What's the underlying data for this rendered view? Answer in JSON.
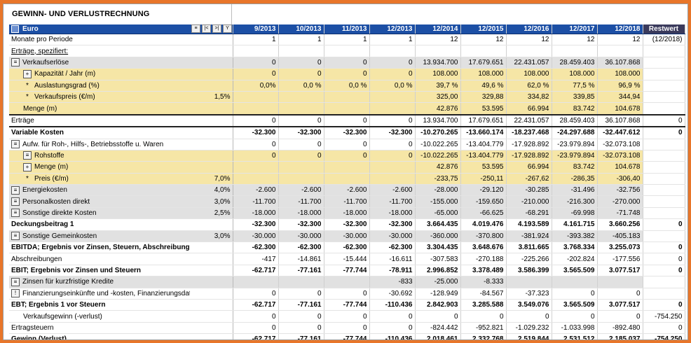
{
  "title": "GEWINN- UND VERLUSTRECHNUNG",
  "header": {
    "currency": "Euro",
    "periods": [
      "9/2013",
      "10/2013",
      "11/2013",
      "12/2013",
      "12/2014",
      "12/2015",
      "12/2016",
      "12/2017",
      "12/2018"
    ],
    "rest": "Restwert"
  },
  "rows": [
    {
      "type": "plain",
      "label": "Monate pro Periode",
      "pct": "",
      "vals": [
        "1",
        "1",
        "1",
        "1",
        "12",
        "12",
        "12",
        "12",
        "12"
      ],
      "rest": "(12/2018)"
    },
    {
      "type": "plain",
      "label": "Erträge, spezifiert:",
      "pct": "",
      "vals": [
        "",
        "",
        "",
        "",
        "",
        "",
        "",
        "",
        ""
      ],
      "rest": "",
      "underline": true
    },
    {
      "type": "gray",
      "icon": "list",
      "label": "Verkaufserlöse",
      "pct": "",
      "vals": [
        "0",
        "0",
        "0",
        "0",
        "13.934.700",
        "17.679.651",
        "22.431.057",
        "28.459.403",
        "36.107.868"
      ],
      "rest": ""
    },
    {
      "type": "yel",
      "icon": "plus",
      "indent": 1,
      "label": "Kapazität / Jahr (m)",
      "pct": "",
      "vals": [
        "0",
        "0",
        "0",
        "0",
        "108.000",
        "108.000",
        "108.000",
        "108.000",
        "108.000"
      ],
      "rest": ""
    },
    {
      "type": "yel",
      "icon": "star",
      "indent": 1,
      "label": "Auslastungsgrad (%)",
      "pct": "",
      "vals": [
        "0,0%",
        "0,0 %",
        "0,0 %",
        "0,0 %",
        "39,7 %",
        "49,6 %",
        "62,0 %",
        "77,5 %",
        "96,9 %"
      ],
      "rest": ""
    },
    {
      "type": "yel",
      "icon": "star",
      "indent": 1,
      "label": "Verkaufspreis (€/m)",
      "pct": "1,5%",
      "vals": [
        "",
        "",
        "",
        "",
        "325,00",
        "329,88",
        "334,82",
        "339,85",
        "344,94"
      ],
      "rest": ""
    },
    {
      "type": "yel",
      "icon": "none",
      "indent": 1,
      "label": "Menge (m)",
      "pct": "",
      "vals": [
        "",
        "",
        "",
        "",
        "42.876",
        "53.595",
        "66.994",
        "83.742",
        "104.678"
      ],
      "rest": ""
    },
    {
      "type": "boxed",
      "label": "Erträge",
      "pct": "",
      "vals": [
        "0",
        "0",
        "0",
        "0",
        "13.934.700",
        "17.679.651",
        "22.431.057",
        "28.459.403",
        "36.107.868"
      ],
      "rest": "0"
    },
    {
      "type": "bold",
      "label": "Variable Kosten",
      "pct": "",
      "vals": [
        "-32.300",
        "-32.300",
        "-32.300",
        "-32.300",
        "-10.270.265",
        "-13.660.174",
        "-18.237.468",
        "-24.297.688",
        "-32.447.612"
      ],
      "rest": "0"
    },
    {
      "type": "plain",
      "icon": "list",
      "label": "Aufw. für Roh-, Hilfs-, Betriebsstoffe u. Waren",
      "pct": "",
      "vals": [
        "0",
        "0",
        "0",
        "0",
        "-10.022.265",
        "-13.404.779",
        "-17.928.892",
        "-23.979.894",
        "-32.073.108"
      ],
      "rest": ""
    },
    {
      "type": "yel",
      "icon": "list",
      "indent": 1,
      "label": "Rohstoffe",
      "pct": "",
      "vals": [
        "0",
        "0",
        "0",
        "0",
        "-10.022.265",
        "-13.404.779",
        "-17.928.892",
        "-23.979.894",
        "-32.073.108"
      ],
      "rest": ""
    },
    {
      "type": "yel",
      "icon": "plus",
      "indent": 1,
      "label": "Menge (m)",
      "pct": "",
      "vals": [
        "",
        "",
        "",
        "",
        "42.876",
        "53.595",
        "66.994",
        "83.742",
        "104.678"
      ],
      "rest": ""
    },
    {
      "type": "yel",
      "icon": "star",
      "indent": 1,
      "label": "Preis (€/m)",
      "pct": "7,0%",
      "vals": [
        "",
        "",
        "",
        "",
        "-233,75",
        "-250,11",
        "-267,62",
        "-286,35",
        "-306,40"
      ],
      "rest": ""
    },
    {
      "type": "gray",
      "icon": "list",
      "label": "Energiekosten",
      "pct": "4,0%",
      "vals": [
        "-2.600",
        "-2.600",
        "-2.600",
        "-2.600",
        "-28.000",
        "-29.120",
        "-30.285",
        "-31.496",
        "-32.756"
      ],
      "rest": ""
    },
    {
      "type": "gray",
      "icon": "list",
      "label": "Personalkosten direkt",
      "pct": "3,0%",
      "vals": [
        "-11.700",
        "-11.700",
        "-11.700",
        "-11.700",
        "-155.000",
        "-159.650",
        "-210.000",
        "-216.300",
        "-270.000"
      ],
      "rest": ""
    },
    {
      "type": "gray",
      "icon": "list",
      "label": "Sonstige direkte Kosten",
      "pct": "2,5%",
      "vals": [
        "-18.000",
        "-18.000",
        "-18.000",
        "-18.000",
        "-65.000",
        "-66.625",
        "-68.291",
        "-69.998",
        "-71.748"
      ],
      "rest": ""
    },
    {
      "type": "bold sep",
      "label": "Deckungsbeitrag 1",
      "pct": "",
      "vals": [
        "-32.300",
        "-32.300",
        "-32.300",
        "-32.300",
        "3.664.435",
        "4.019.476",
        "4.193.589",
        "4.161.715",
        "3.660.256"
      ],
      "rest": "0"
    },
    {
      "type": "gray",
      "icon": "list",
      "label": "Sonstige Gemeinkosten",
      "pct": "3,0%",
      "vals": [
        "-30.000",
        "-30.000",
        "-30.000",
        "-30.000",
        "-360.000",
        "-370.800",
        "-381.924",
        "-393.382",
        "-405.183"
      ],
      "rest": ""
    },
    {
      "type": "bold sep",
      "label": "EBITDA; Ergebnis vor Zinsen, Steuern, Abschreibungen",
      "pct": "",
      "vals": [
        "-62.300",
        "-62.300",
        "-62.300",
        "-62.300",
        "3.304.435",
        "3.648.676",
        "3.811.665",
        "3.768.334",
        "3.255.073"
      ],
      "rest": "0"
    },
    {
      "type": "plain",
      "label": "Abschreibungen",
      "pct": "",
      "vals": [
        "-417",
        "-14.861",
        "-15.444",
        "-16.611",
        "-307.583",
        "-270.188",
        "-225.266",
        "-202.824",
        "-177.556"
      ],
      "rest": "0"
    },
    {
      "type": "bold sep",
      "label": "EBIT; Ergebnis vor Zinsen und Steuern",
      "pct": "",
      "vals": [
        "-62.717",
        "-77.161",
        "-77.744",
        "-78.911",
        "2.996.852",
        "3.378.489",
        "3.586.399",
        "3.565.509",
        "3.077.517"
      ],
      "rest": "0"
    },
    {
      "type": "gray",
      "icon": "list",
      "label": "Zinsen für kurzfristige Kredite",
      "pct": "",
      "vals": [
        "",
        "",
        "",
        "-833",
        "-25.000",
        "-8.333",
        "",
        "",
        ""
      ],
      "rest": ""
    },
    {
      "type": "plain",
      "icon": "excl",
      "label": "Finanzierungseinkünfte und -kosten, Finanzierungsdatei",
      "pct": "",
      "vals": [
        "0",
        "0",
        "0",
        "-30.692",
        "-128.949",
        "-84.567",
        "-37.323",
        "0",
        "0"
      ],
      "rest": ""
    },
    {
      "type": "bold sep",
      "label": "EBT; Ergebnis 1 vor Steuern",
      "pct": "",
      "vals": [
        "-62.717",
        "-77.161",
        "-77.744",
        "-110.436",
        "2.842.903",
        "3.285.588",
        "3.549.076",
        "3.565.509",
        "3.077.517"
      ],
      "rest": "0"
    },
    {
      "type": "plain",
      "indent": 1,
      "label": "Verkaufsgewinn (-verlust)",
      "pct": "",
      "vals": [
        "0",
        "0",
        "0",
        "0",
        "0",
        "0",
        "0",
        "0",
        "0"
      ],
      "rest": "-754.250"
    },
    {
      "type": "plain",
      "label": "Ertragsteuern",
      "pct": "",
      "vals": [
        "0",
        "0",
        "0",
        "0",
        "-824.442",
        "-952.821",
        "-1.029.232",
        "-1.033.998",
        "-892.480"
      ],
      "rest": "0"
    },
    {
      "type": "bold sep",
      "label": "Gewinn (Verlust)",
      "pct": "",
      "vals": [
        "-62.717",
        "-77.161",
        "-77.744",
        "-110.436",
        "2.018.461",
        "2.332.768",
        "2.519.844",
        "2.531.512",
        "2.185.037"
      ],
      "rest": "-754.250"
    }
  ]
}
